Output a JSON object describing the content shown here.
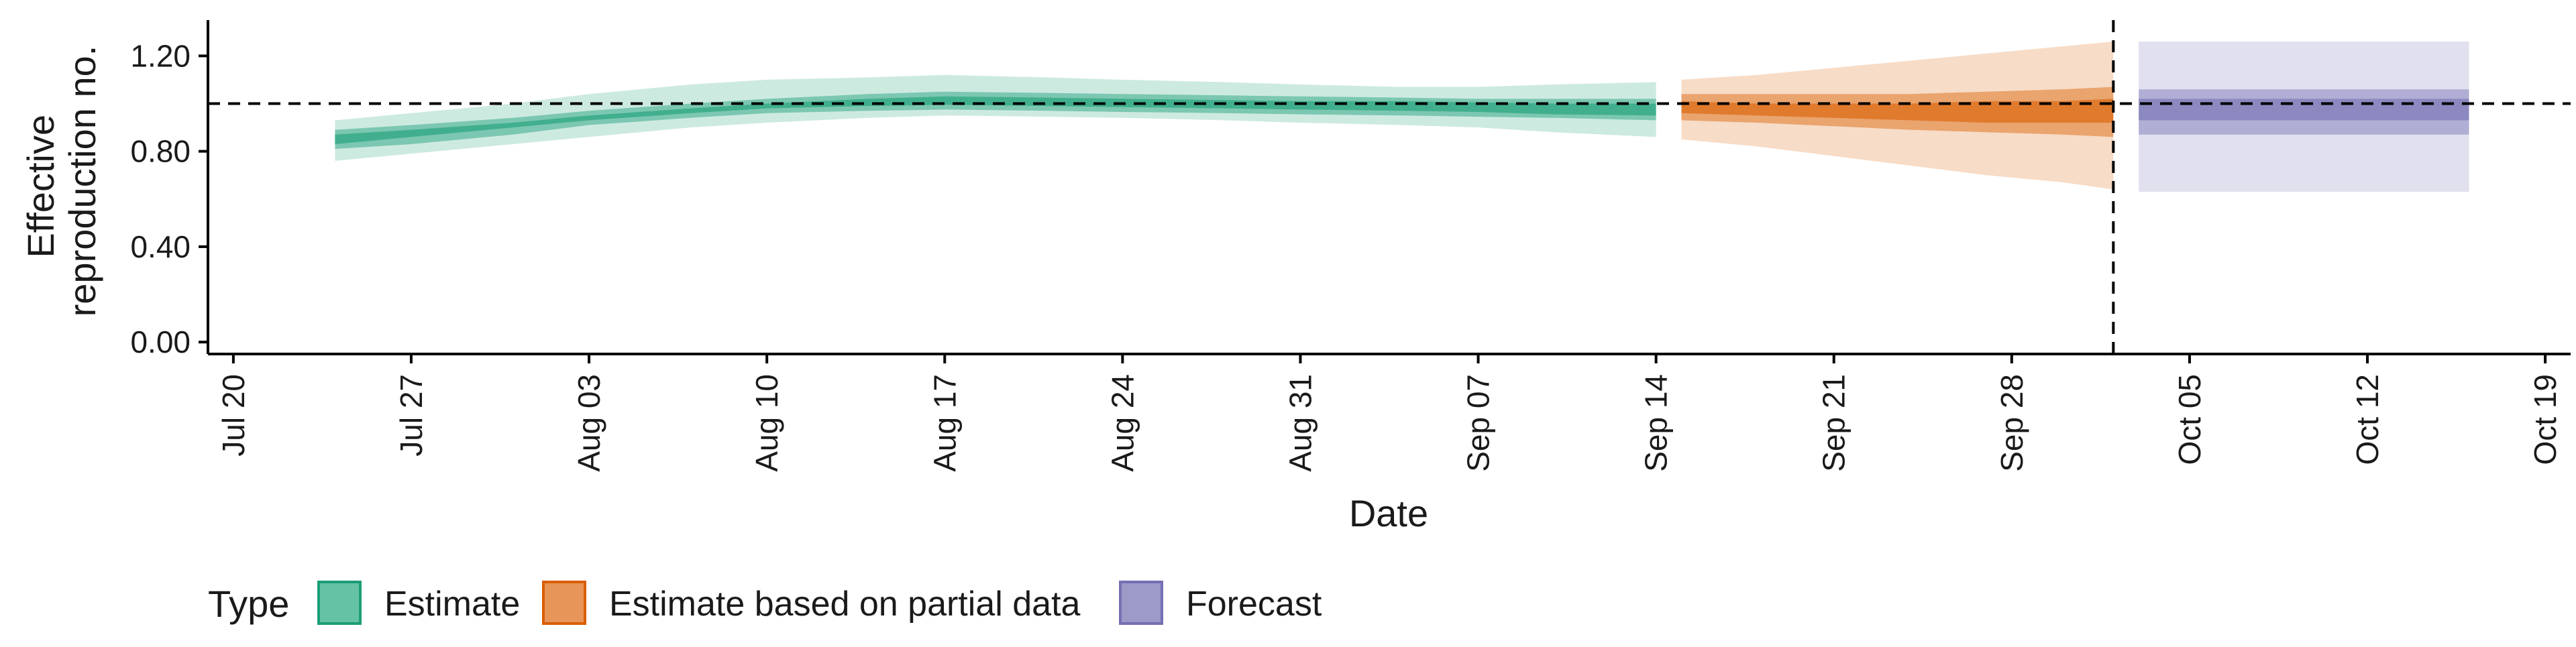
{
  "chart_data": {
    "type": "area",
    "title": "",
    "xlabel": "Date",
    "ylabel_lines": [
      "Effective",
      "reproduction no."
    ],
    "y_ticks": [
      0.0,
      0.4,
      0.8,
      1.2
    ],
    "y_tick_labels": [
      "0.00",
      "0.40",
      "0.80",
      "1.20"
    ],
    "ylim": [
      -0.05,
      1.35
    ],
    "x_ticks": [
      "Jul 20",
      "Jul 27",
      "Aug 03",
      "Aug 10",
      "Aug 17",
      "Aug 24",
      "Aug 31",
      "Sep 07",
      "Sep 14",
      "Sep 21",
      "Sep 28",
      "Oct 05",
      "Oct 12",
      "Oct 19"
    ],
    "x_tick_dates": [
      "2020-07-20",
      "2020-07-27",
      "2020-08-03",
      "2020-08-10",
      "2020-08-17",
      "2020-08-24",
      "2020-08-31",
      "2020-09-07",
      "2020-09-14",
      "2020-09-21",
      "2020-09-28",
      "2020-10-05",
      "2020-10-12",
      "2020-10-19"
    ],
    "xlim": [
      "2020-07-19",
      "2020-10-20"
    ],
    "reference_line_y": 1.0,
    "forecast_date": "2020-10-02",
    "grid": false,
    "legend": {
      "title": "Type",
      "position": "bottom",
      "items": [
        {
          "label": "Estimate",
          "fill": "#66c2a5",
          "stroke": "#1b9e77"
        },
        {
          "label": "Estimate based on partial data",
          "fill": "#e8955a",
          "stroke": "#d95f02"
        },
        {
          "label": "Forecast",
          "fill": "#9e9ac8",
          "stroke": "#7570b3"
        }
      ]
    },
    "series": [
      {
        "name": "Estimate",
        "color": "#1b9e77",
        "x": [
          "2020-07-24",
          "2020-07-27",
          "2020-07-31",
          "2020-08-03",
          "2020-08-07",
          "2020-08-10",
          "2020-08-14",
          "2020-08-17",
          "2020-08-21",
          "2020-08-24",
          "2020-08-28",
          "2020-08-31",
          "2020-09-04",
          "2020-09-07",
          "2020-09-10",
          "2020-09-14"
        ],
        "median": [
          0.85,
          0.87,
          0.91,
          0.94,
          0.97,
          0.99,
          1.0,
          1.01,
          1.005,
          1.0,
          0.995,
          0.99,
          0.99,
          0.985,
          0.98,
          0.975
        ],
        "lower_20": [
          0.83,
          0.86,
          0.9,
          0.93,
          0.96,
          0.98,
          0.99,
          0.995,
          0.99,
          0.985,
          0.98,
          0.975,
          0.97,
          0.965,
          0.955,
          0.95
        ],
        "upper_20": [
          0.87,
          0.89,
          0.92,
          0.95,
          0.98,
          1.0,
          1.02,
          1.03,
          1.025,
          1.02,
          1.015,
          1.01,
          1.01,
          1.005,
          1.0,
          1.0
        ],
        "lower_50": [
          0.81,
          0.83,
          0.87,
          0.91,
          0.94,
          0.96,
          0.97,
          0.975,
          0.97,
          0.965,
          0.96,
          0.955,
          0.95,
          0.945,
          0.94,
          0.93
        ],
        "upper_50": [
          0.89,
          0.91,
          0.94,
          0.97,
          1.0,
          1.02,
          1.04,
          1.05,
          1.045,
          1.04,
          1.035,
          1.03,
          1.025,
          1.02,
          1.02,
          1.02
        ],
        "lower_90": [
          0.76,
          0.79,
          0.83,
          0.86,
          0.9,
          0.92,
          0.94,
          0.95,
          0.945,
          0.94,
          0.93,
          0.92,
          0.91,
          0.9,
          0.88,
          0.86
        ],
        "upper_90": [
          0.93,
          0.96,
          1.0,
          1.04,
          1.08,
          1.1,
          1.11,
          1.12,
          1.11,
          1.1,
          1.09,
          1.08,
          1.07,
          1.07,
          1.08,
          1.09
        ]
      },
      {
        "name": "Estimate based on partial data",
        "color": "#d95f02",
        "x": [
          "2020-09-15",
          "2020-09-18",
          "2020-09-21",
          "2020-09-24",
          "2020-09-27",
          "2020-09-30",
          "2020-10-02"
        ],
        "median": [
          0.985,
          0.98,
          0.975,
          0.97,
          0.97,
          0.975,
          0.98
        ],
        "lower_20": [
          0.96,
          0.95,
          0.94,
          0.93,
          0.92,
          0.92,
          0.92
        ],
        "upper_20": [
          1.01,
          1.0,
          1.0,
          1.0,
          1.01,
          1.01,
          1.02
        ],
        "lower_50": [
          0.93,
          0.92,
          0.905,
          0.89,
          0.88,
          0.87,
          0.86
        ],
        "upper_50": [
          1.04,
          1.04,
          1.04,
          1.04,
          1.05,
          1.06,
          1.07
        ],
        "lower_90": [
          0.85,
          0.82,
          0.78,
          0.74,
          0.7,
          0.67,
          0.64
        ],
        "upper_90": [
          1.1,
          1.12,
          1.15,
          1.18,
          1.21,
          1.24,
          1.26
        ]
      },
      {
        "name": "Forecast",
        "color": "#7570b3",
        "x": [
          "2020-10-03",
          "2020-10-16"
        ],
        "median": [
          0.98,
          0.98
        ],
        "lower_20": [
          0.93,
          0.93
        ],
        "upper_20": [
          1.02,
          1.02
        ],
        "lower_50": [
          0.87,
          0.87
        ],
        "upper_50": [
          1.06,
          1.06
        ],
        "lower_90": [
          0.63,
          0.63
        ],
        "upper_90": [
          1.26,
          1.26
        ]
      }
    ]
  }
}
